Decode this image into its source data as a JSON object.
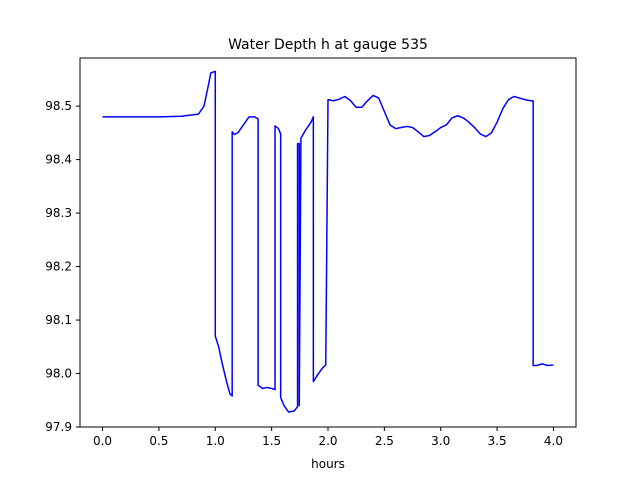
{
  "chart_data": {
    "type": "line",
    "title": "Water Depth h at gauge 535",
    "xlabel": "hours",
    "ylabel": "",
    "xlim": [
      -0.2,
      4.2
    ],
    "ylim": [
      97.9,
      98.59
    ],
    "xticks": [
      0.0,
      0.5,
      1.0,
      1.5,
      2.0,
      2.5,
      3.0,
      3.5,
      4.0
    ],
    "xtick_labels": [
      "0.0",
      "0.5",
      "1.0",
      "1.5",
      "2.0",
      "2.5",
      "3.0",
      "3.5",
      "4.0"
    ],
    "yticks": [
      97.9,
      98.0,
      98.1,
      98.2,
      98.3,
      98.4,
      98.5
    ],
    "ytick_labels": [
      "97.9",
      "98.0",
      "98.1",
      "98.2",
      "98.3",
      "98.4",
      "98.5"
    ],
    "grid": false,
    "series": [
      {
        "color": "#0000ff",
        "x": [
          0.0,
          0.5,
          0.7,
          0.85,
          0.9,
          0.94,
          0.96,
          1.0,
          1.0,
          1.03,
          1.06,
          1.1,
          1.13,
          1.15,
          1.15,
          1.17,
          1.2,
          1.25,
          1.3,
          1.35,
          1.38,
          1.38,
          1.42,
          1.46,
          1.5,
          1.53,
          1.53,
          1.56,
          1.58,
          1.58,
          1.61,
          1.65,
          1.7,
          1.73,
          1.73,
          1.745,
          1.745,
          1.76,
          1.8,
          1.85,
          1.87,
          1.87,
          1.9,
          1.95,
          1.98,
          1.98,
          2.0,
          2.05,
          2.1,
          2.15,
          2.2,
          2.25,
          2.3,
          2.35,
          2.4,
          2.45,
          2.5,
          2.55,
          2.6,
          2.65,
          2.7,
          2.75,
          2.8,
          2.85,
          2.9,
          2.95,
          3.0,
          3.05,
          3.1,
          3.15,
          3.2,
          3.25,
          3.3,
          3.35,
          3.4,
          3.45,
          3.5,
          3.55,
          3.6,
          3.65,
          3.7,
          3.75,
          3.8,
          3.82,
          3.82,
          3.85,
          3.9,
          3.95,
          4.0
        ],
        "values": [
          98.48,
          98.48,
          98.481,
          98.485,
          98.5,
          98.54,
          98.562,
          98.565,
          98.07,
          98.05,
          98.02,
          97.985,
          97.962,
          97.958,
          98.452,
          98.447,
          98.45,
          98.465,
          98.48,
          98.48,
          98.476,
          97.978,
          97.972,
          97.974,
          97.972,
          97.97,
          98.463,
          98.458,
          98.448,
          97.955,
          97.94,
          97.928,
          97.93,
          97.938,
          98.43,
          98.43,
          97.94,
          98.44,
          98.455,
          98.47,
          98.48,
          97.985,
          97.995,
          98.01,
          98.016,
          98.016,
          98.512,
          98.51,
          98.513,
          98.518,
          98.51,
          98.498,
          98.498,
          98.51,
          98.52,
          98.515,
          98.49,
          98.465,
          98.458,
          98.46,
          98.462,
          98.46,
          98.452,
          98.443,
          98.445,
          98.452,
          98.46,
          98.465,
          98.478,
          98.482,
          98.478,
          98.47,
          98.46,
          98.448,
          98.443,
          98.45,
          98.47,
          98.495,
          98.512,
          98.518,
          98.515,
          98.512,
          98.51,
          98.51,
          98.015,
          98.015,
          98.018,
          98.015,
          98.016
        ]
      }
    ]
  }
}
